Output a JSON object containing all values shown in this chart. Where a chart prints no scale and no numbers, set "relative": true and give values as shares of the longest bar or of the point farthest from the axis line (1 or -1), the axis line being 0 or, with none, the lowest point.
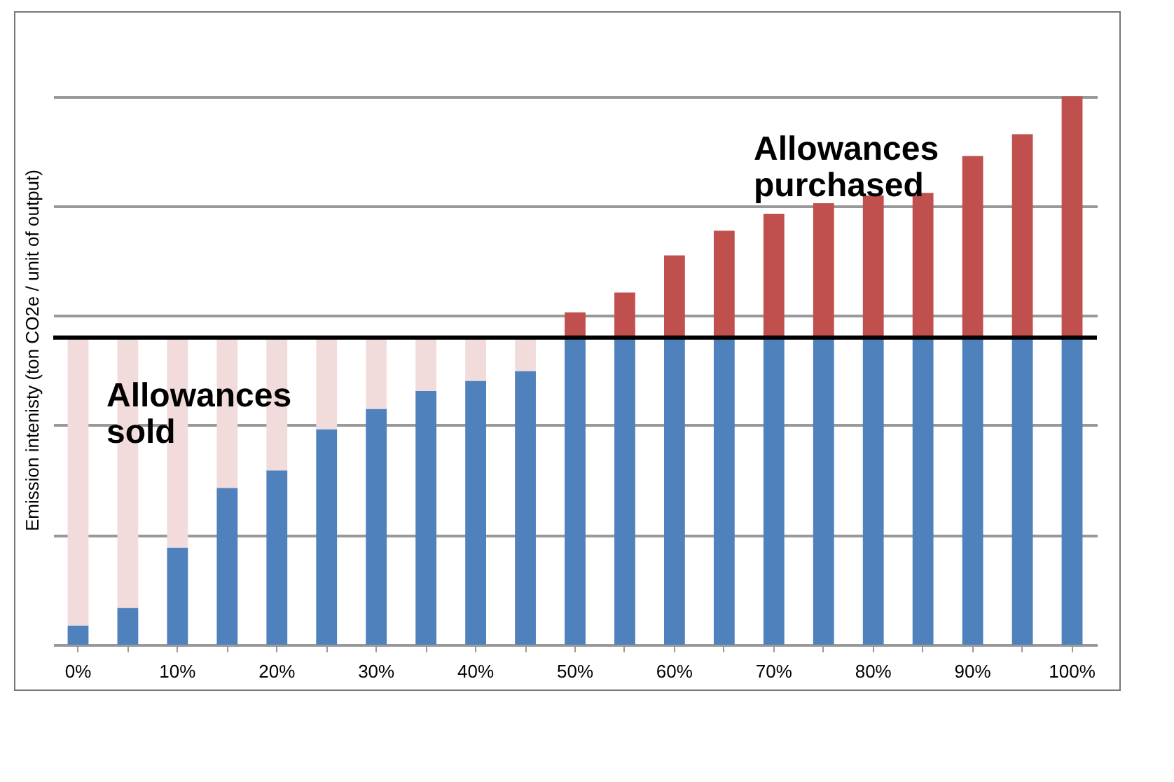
{
  "chart_data": {
    "type": "bar",
    "stacked": true,
    "relative": true,
    "ylabel": "Emission intenisty (ton CO2e / unit of output)",
    "categories": [
      "0%",
      null,
      "10%",
      null,
      "20%",
      null,
      "30%",
      null,
      "40%",
      null,
      "50%",
      null,
      "60%",
      null,
      "70%",
      null,
      "80%",
      null,
      "90%",
      null,
      "100%"
    ],
    "series": [
      {
        "color": "#4f81bd",
        "values": [
          0.035,
          0.067,
          0.177,
          0.286,
          0.318,
          0.393,
          0.43,
          0.463,
          0.481,
          0.499,
          0.56,
          0.56,
          0.56,
          0.56,
          0.56,
          0.56,
          0.56,
          0.56,
          0.56,
          0.56,
          0.56
        ]
      },
      {
        "color": "#f2dcdb",
        "values": [
          0.525,
          0.493,
          0.383,
          0.274,
          0.242,
          0.167,
          0.13,
          0.097,
          0.079,
          0.061,
          null,
          null,
          null,
          null,
          null,
          null,
          null,
          null,
          null,
          null,
          null
        ]
      },
      {
        "color": "#c0504d",
        "values": [
          null,
          null,
          null,
          null,
          null,
          null,
          null,
          null,
          null,
          null,
          0.046,
          0.082,
          0.15,
          0.195,
          0.226,
          0.245,
          0.259,
          0.264,
          0.331,
          0.371,
          0.44
        ]
      }
    ],
    "ref_lines": [
      {
        "axis": "y",
        "value": 0.56,
        "color": "#000000"
      }
    ],
    "annotations": [
      "Allowances purchased",
      "Allowances sold"
    ],
    "grid": "y"
  }
}
